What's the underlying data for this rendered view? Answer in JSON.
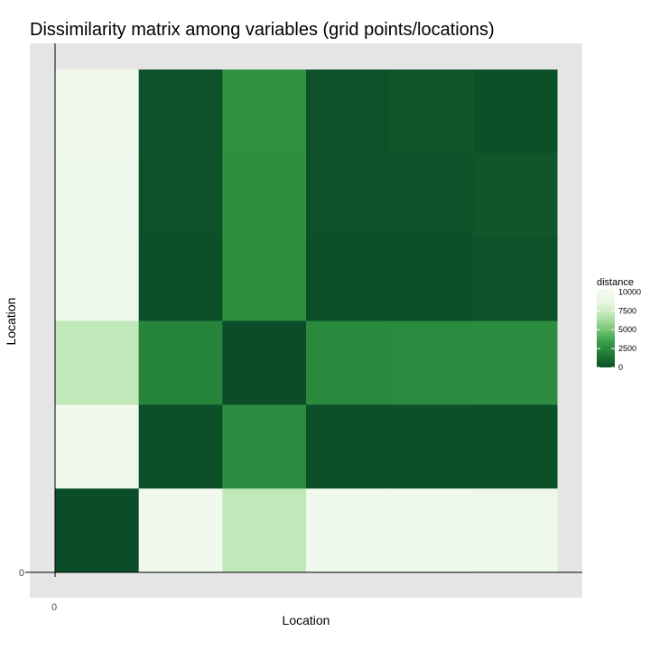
{
  "chart_data": {
    "type": "heatmap",
    "title": "Dissimilarity matrix among variables (grid points/locations)",
    "xlabel": "Location",
    "ylabel": "Location",
    "x_ticks": [
      "0"
    ],
    "y_ticks": [
      "0"
    ],
    "legend": {
      "title": "distance",
      "ticks": [
        10000,
        7500,
        5000,
        2500,
        0
      ],
      "tick_labels": [
        "10000",
        "7500",
        "5000",
        "2500",
        "0"
      ],
      "range": [
        0,
        10400
      ],
      "colors_low_to_high": [
        "#0b4d28",
        "#1e7a35",
        "#3aa04a",
        "#7ec97a",
        "#bfe7b6",
        "#e9f6e4",
        "#f4fbf2"
      ],
      "placement": "right"
    },
    "ncols": 6,
    "nrows": 6,
    "rows_top_to_bottom": [
      [
        9700,
        200,
        2800,
        200,
        350,
        100
      ],
      [
        9600,
        150,
        2700,
        150,
        150,
        400
      ],
      [
        9600,
        100,
        2650,
        100,
        100,
        150
      ],
      [
        7000,
        2200,
        0,
        2400,
        2500,
        2600
      ],
      [
        9700,
        100,
        2600,
        100,
        100,
        100
      ],
      [
        0,
        9700,
        7000,
        9600,
        9600,
        9400
      ]
    ]
  }
}
